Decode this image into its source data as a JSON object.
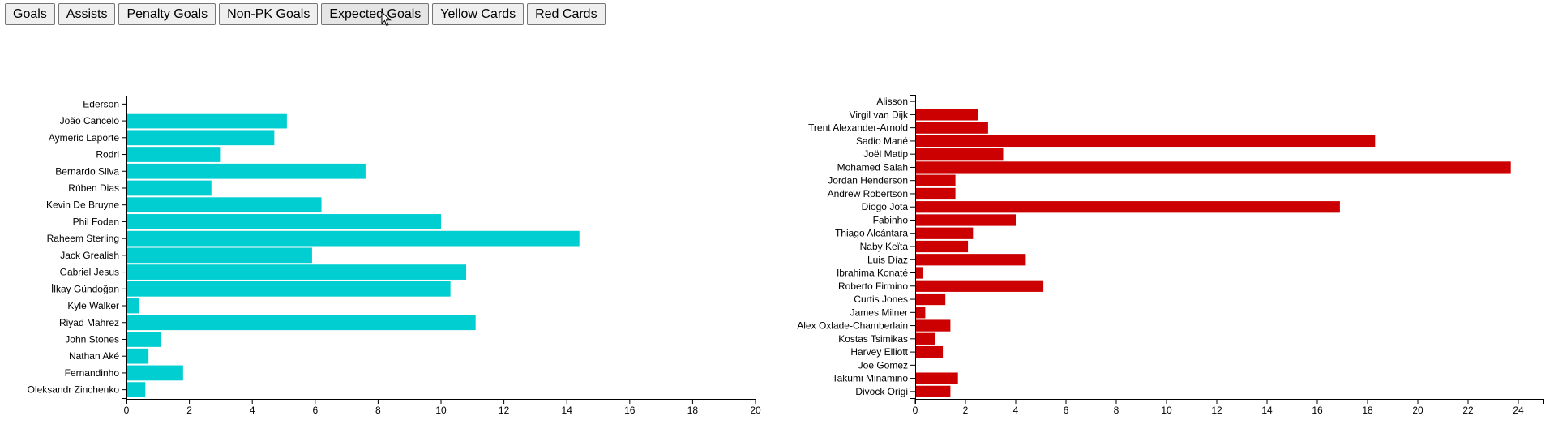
{
  "toolbar": {
    "buttons": [
      "Goals",
      "Assists",
      "Penalty Goals",
      "Non-PK Goals",
      "Expected Goals",
      "Yellow Cards",
      "Red Cards"
    ]
  },
  "colors": {
    "left_bar": "#00CED1",
    "right_bar": "#CC0000"
  },
  "chart_data": [
    {
      "type": "bar",
      "orientation": "horizontal",
      "xlim": [
        0,
        20
      ],
      "x_ticks": [
        "0",
        "2",
        "4",
        "6",
        "8",
        "10",
        "12",
        "14",
        "16",
        "18",
        "20"
      ],
      "categories": [
        "Ederson",
        "João Cancelo",
        "Aymeric Laporte",
        "Rodri",
        "Bernardo Silva",
        "Rúben Dias",
        "Kevin De Bruyne",
        "Phil Foden",
        "Raheem Sterling",
        "Jack Grealish",
        "Gabriel Jesus",
        "İlkay Gündoğan",
        "Kyle Walker",
        "Riyad Mahrez",
        "John Stones",
        "Nathan Aké",
        "Fernandinho",
        "Oleksandr Zinchenko"
      ],
      "values": [
        0.0,
        5.1,
        4.7,
        3.0,
        7.6,
        2.7,
        6.2,
        10.0,
        14.4,
        5.9,
        10.8,
        10.3,
        0.4,
        11.1,
        1.1,
        0.7,
        1.8,
        0.6
      ]
    },
    {
      "type": "bar",
      "orientation": "horizontal",
      "xlim": [
        0,
        25
      ],
      "x_ticks": [
        "0",
        "2",
        "4",
        "6",
        "8",
        "10",
        "12",
        "14",
        "16",
        "18",
        "20",
        "22",
        "24"
      ],
      "categories": [
        "Alisson",
        "Virgil van Dijk",
        "Trent Alexander-Arnold",
        "Sadio Mané",
        "Joël Matip",
        "Mohamed Salah",
        "Jordan Henderson",
        "Andrew Robertson",
        "Diogo Jota",
        "Fabinho",
        "Thiago Alcántara",
        "Naby Keïta",
        "Luis Díaz",
        "Ibrahima Konaté",
        "Roberto Firmino",
        "Curtis Jones",
        "James Milner",
        "Alex Oxlade-Chamberlain",
        "Kostas Tsimikas",
        "Harvey Elliott",
        "Joe Gomez",
        "Takumi Minamino",
        "Divock Origi"
      ],
      "values": [
        0.0,
        2.5,
        2.9,
        18.3,
        3.5,
        23.7,
        1.6,
        1.6,
        16.9,
        4.0,
        2.3,
        2.1,
        4.4,
        0.3,
        5.1,
        1.2,
        0.4,
        1.4,
        0.8,
        1.1,
        0.0,
        1.7,
        1.4
      ]
    }
  ]
}
